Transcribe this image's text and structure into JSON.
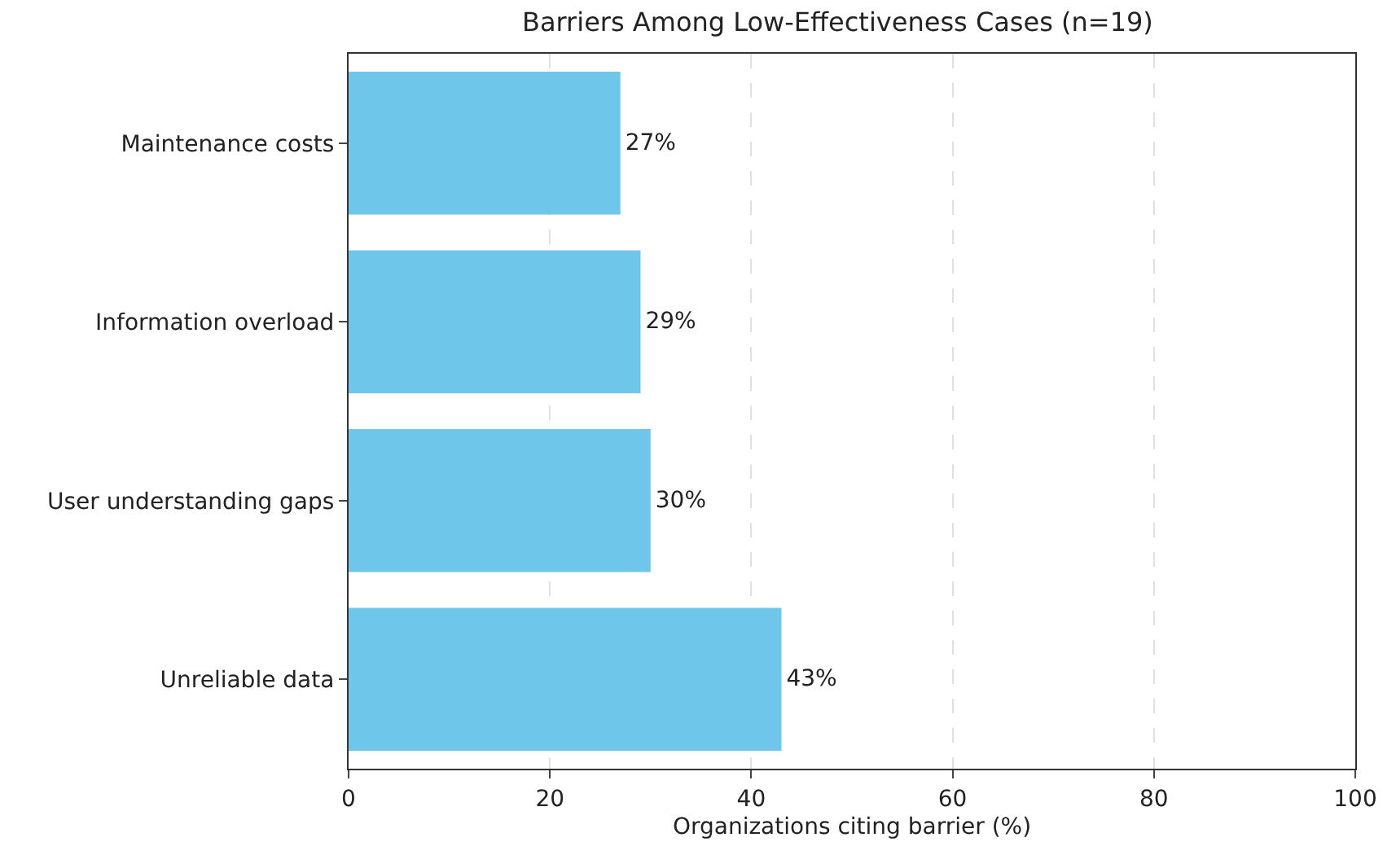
{
  "chart_data": {
    "type": "bar",
    "orientation": "horizontal",
    "title": "Barriers Among Low-Effectiveness Cases (n=19)",
    "xlabel": "Organizations citing barrier (%)",
    "categories": [
      "Maintenance costs",
      "Information overload",
      "User understanding gaps",
      "Unreliable data"
    ],
    "values": [
      27,
      29,
      30,
      43
    ],
    "value_labels": [
      "27%",
      "29%",
      "30%",
      "43%"
    ],
    "color": "#6ec6ea",
    "xlim": [
      0,
      100
    ],
    "xticks": [
      0,
      20,
      40,
      60,
      80,
      100
    ],
    "grid": "x"
  }
}
